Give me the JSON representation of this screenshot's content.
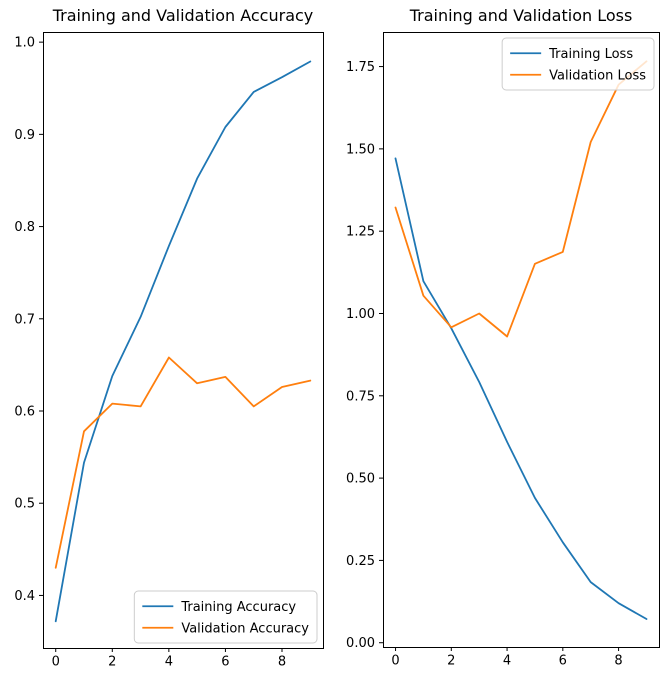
{
  "figure": {
    "background": "#ffffff",
    "text_color": "#000000",
    "axis_color": "#000000",
    "legend_border_color": "#cccccc",
    "legend_fill": "#ffffff"
  },
  "chart_data": [
    {
      "type": "line",
      "title": "Training and Validation Accuracy",
      "xlabel": "",
      "ylabel": "",
      "grid": false,
      "x": [
        0,
        1,
        2,
        3,
        4,
        5,
        6,
        7,
        8,
        9
      ],
      "series": [
        {
          "name": "Training Accuracy",
          "color": "#1f77b4",
          "values": [
            0.372,
            0.544,
            0.638,
            0.702,
            0.779,
            0.852,
            0.908,
            0.946,
            0.962,
            0.979
          ]
        },
        {
          "name": "Validation Accuracy",
          "color": "#ff7f0e",
          "values": [
            0.43,
            0.578,
            0.608,
            0.605,
            0.658,
            0.63,
            0.637,
            0.605,
            0.626,
            0.633
          ]
        }
      ],
      "xlim": [
        -0.45,
        9.45
      ],
      "ylim": [
        0.343,
        1.011
      ],
      "xticks": {
        "values": [
          0,
          2,
          4,
          6,
          8
        ],
        "labels": [
          "0",
          "2",
          "4",
          "6",
          "8"
        ]
      },
      "yticks": {
        "values": [
          0.4,
          0.5,
          0.6,
          0.7,
          0.8,
          0.9,
          1.0
        ],
        "labels": [
          "0.4",
          "0.5",
          "0.6",
          "0.7",
          "0.8",
          "0.9",
          "1.0"
        ]
      },
      "legend": {
        "position": "lower right",
        "entries": [
          "Training Accuracy",
          "Validation Accuracy"
        ]
      }
    },
    {
      "type": "line",
      "title": "Training and Validation Loss",
      "xlabel": "",
      "ylabel": "",
      "grid": false,
      "x": [
        0,
        1,
        2,
        3,
        4,
        5,
        6,
        7,
        8,
        9
      ],
      "series": [
        {
          "name": "Training Loss",
          "color": "#1f77b4",
          "values": [
            1.471,
            1.098,
            0.955,
            0.792,
            0.61,
            0.44,
            0.305,
            0.184,
            0.12,
            0.072
          ]
        },
        {
          "name": "Validation Loss",
          "color": "#ff7f0e",
          "values": [
            1.322,
            1.054,
            0.958,
            1.0,
            0.93,
            1.151,
            1.187,
            1.521,
            1.695,
            1.766
          ]
        }
      ],
      "xlim": [
        -0.45,
        9.45
      ],
      "ylim": [
        -0.013,
        1.855
      ],
      "xticks": {
        "values": [
          0,
          2,
          4,
          6,
          8
        ],
        "labels": [
          "0",
          "2",
          "4",
          "6",
          "8"
        ]
      },
      "yticks": {
        "values": [
          0.0,
          0.25,
          0.5,
          0.75,
          1.0,
          1.25,
          1.5,
          1.75
        ],
        "labels": [
          "0.00",
          "0.25",
          "0.50",
          "0.75",
          "1.00",
          "1.25",
          "1.50",
          "1.75"
        ]
      },
      "legend": {
        "position": "upper right",
        "entries": [
          "Training Loss",
          "Validation Loss"
        ]
      }
    }
  ]
}
